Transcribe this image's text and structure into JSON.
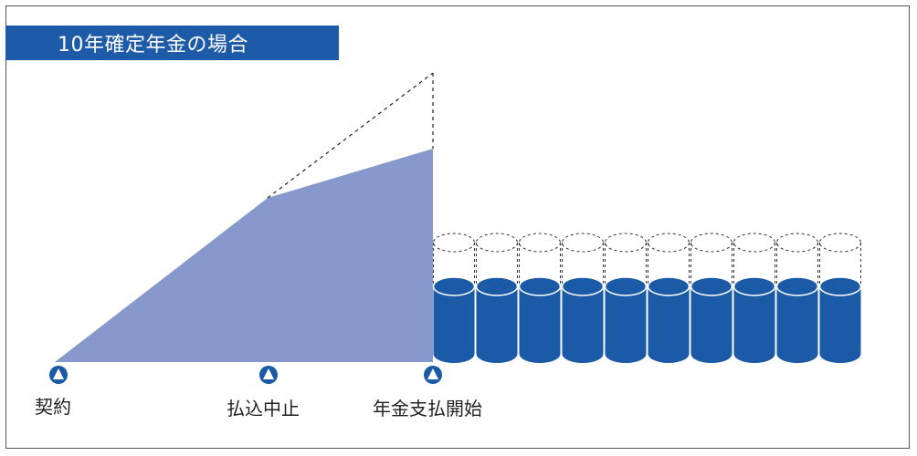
{
  "title": "10年確定年金の場合",
  "milestones": [
    {
      "label": "契約"
    },
    {
      "label": "払込中止"
    },
    {
      "label": "年金支払開始"
    }
  ],
  "annuity_years": 10,
  "colors": {
    "title_bg": "#1d5aa8",
    "area_fill": "#8799cc",
    "cylinder_fill": "#1a5aa6",
    "marker": "#1a5aa6"
  }
}
